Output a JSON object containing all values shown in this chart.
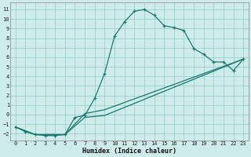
{
  "xlabel": "Humidex (Indice chaleur)",
  "bg_color": "#ceecea",
  "grid_color": "#9ecece",
  "line_color": "#1a7a6e",
  "xlim": [
    -0.5,
    23.5
  ],
  "ylim": [
    -2.7,
    11.7
  ],
  "xticks": [
    0,
    1,
    2,
    3,
    4,
    5,
    6,
    7,
    8,
    9,
    10,
    11,
    12,
    13,
    14,
    15,
    16,
    17,
    18,
    19,
    20,
    21,
    22,
    23
  ],
  "yticks": [
    -2,
    -1,
    0,
    1,
    2,
    3,
    4,
    5,
    6,
    7,
    8,
    9,
    10,
    11
  ],
  "series": [
    [
      0,
      -1.3
    ],
    [
      1,
      -1.8
    ],
    [
      2,
      -2.1
    ],
    [
      3,
      -2.2
    ],
    [
      4,
      -2.2
    ],
    [
      5,
      -2.1
    ],
    [
      6,
      -0.3
    ],
    [
      7,
      -0.1
    ],
    [
      8,
      1.7
    ],
    [
      9,
      4.3
    ],
    [
      10,
      8.2
    ],
    [
      11,
      9.7
    ],
    [
      12,
      10.8
    ],
    [
      13,
      11.0
    ],
    [
      14,
      10.4
    ],
    [
      15,
      9.3
    ],
    [
      16,
      9.1
    ],
    [
      17,
      8.8
    ],
    [
      18,
      6.9
    ],
    [
      19,
      6.3
    ],
    [
      20,
      5.5
    ],
    [
      21,
      5.5
    ],
    [
      22,
      4.6
    ],
    [
      23,
      5.8
    ]
  ],
  "line2": [
    [
      0,
      -1.3
    ],
    [
      2,
      -2.1
    ],
    [
      5,
      -2.1
    ],
    [
      7,
      -0.3
    ],
    [
      9,
      -0.1
    ],
    [
      23,
      5.8
    ]
  ],
  "line3": [
    [
      0,
      -1.3
    ],
    [
      2,
      -2.1
    ],
    [
      5,
      -2.1
    ],
    [
      7,
      0.1
    ],
    [
      9,
      0.5
    ],
    [
      23,
      5.8
    ]
  ]
}
